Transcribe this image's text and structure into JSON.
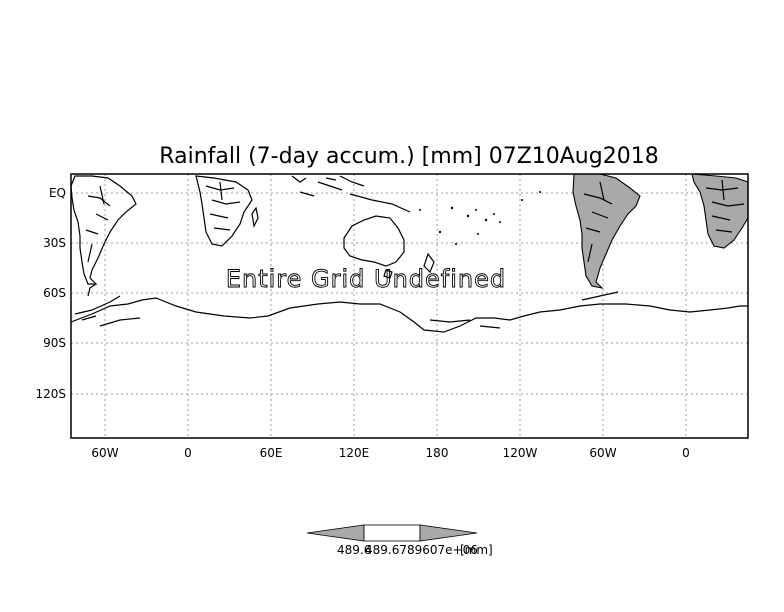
{
  "title": "Rainfall (7-day accum.) [mm] 07Z10Aug2018",
  "overlay_text": "Entire Grid Undefined",
  "map": {
    "lat_ticks": [
      "EQ",
      "30S",
      "60S",
      "90S",
      "120S"
    ],
    "lon_ticks": [
      "60W",
      "0",
      "60E",
      "120E",
      "180",
      "120W",
      "60W",
      "0"
    ]
  },
  "colorbar": {
    "label_overlap": "489.6789607e+06",
    "label_left": "489.6",
    "label_right": "e+06",
    "unit": "[mm]"
  },
  "colors": {
    "land_shaded": "#a9a9a9",
    "grid": "#9a9a9a",
    "frame": "#000000"
  }
}
